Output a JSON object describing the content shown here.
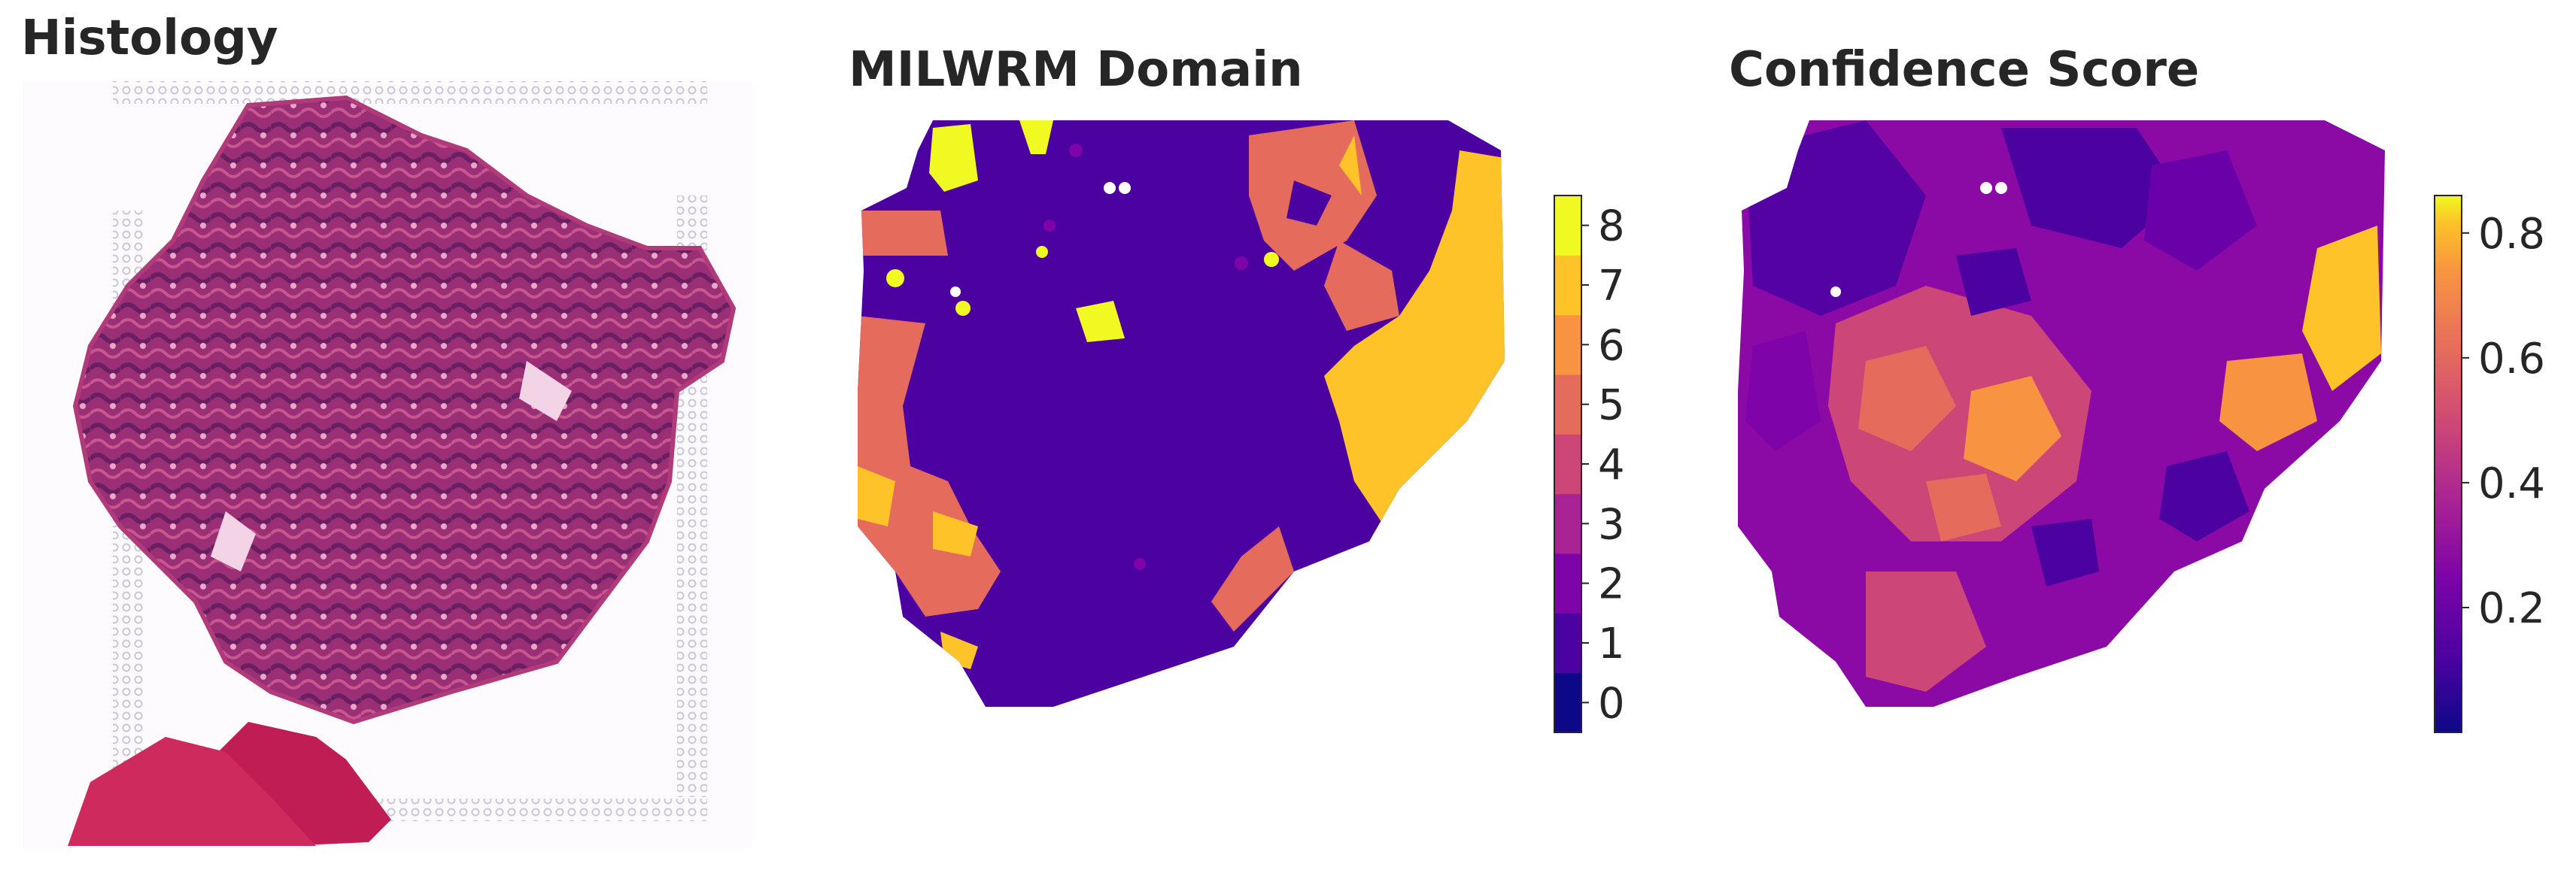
{
  "chart_data": [
    {
      "type": "image",
      "title": "Histology"
    },
    {
      "type": "heatmap",
      "title": "MILWRM Domain",
      "colorbar": {
        "ticks": [
          0,
          1,
          2,
          3,
          4,
          5,
          6,
          7,
          8
        ],
        "colors": [
          "#0d0887",
          "#4c02a1",
          "#7e03a8",
          "#a92395",
          "#cc4778",
          "#e56b5d",
          "#f89441",
          "#fdc328",
          "#f0f921"
        ],
        "discrete": true
      },
      "dominant_domains": [
        1,
        5,
        7
      ]
    },
    {
      "type": "heatmap",
      "title": "Confidence Score",
      "colorbar": {
        "ticks": [
          "0.2",
          "0.4",
          "0.6",
          "0.8"
        ],
        "range": [
          0.0,
          0.86
        ],
        "colormap": "plasma"
      }
    }
  ]
}
